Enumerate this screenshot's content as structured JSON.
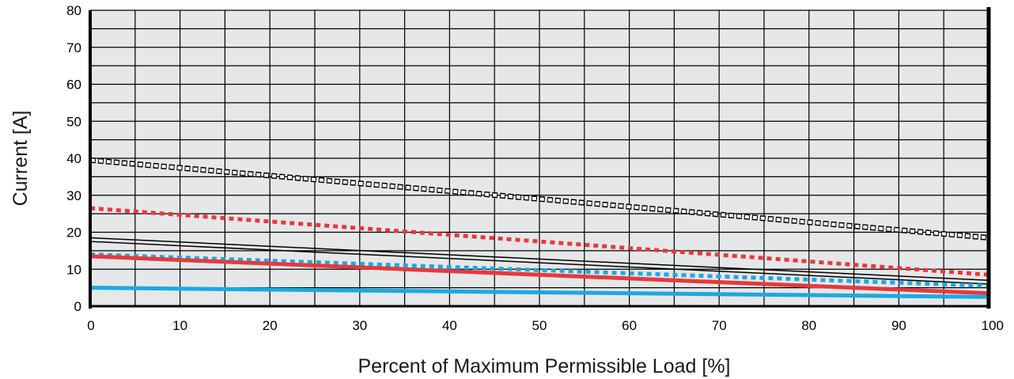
{
  "chart_data": {
    "type": "line",
    "xlabel": "Percent of Maximum Permissible Load [%]",
    "ylabel": "Current [A]",
    "xlim": [
      0,
      100
    ],
    "ylim": [
      0,
      80
    ],
    "x_ticks": [
      0,
      10,
      20,
      30,
      40,
      50,
      60,
      70,
      80,
      90,
      100
    ],
    "x_tick_labels": [
      "0",
      "10",
      "20",
      "30",
      "40",
      "50",
      "60",
      "70",
      "80",
      "90",
      "100"
    ],
    "y_ticks": [
      0,
      10,
      20,
      30,
      40,
      50,
      60,
      70,
      80
    ],
    "y_tick_labels": [
      "0",
      "10",
      "20",
      "30",
      "40",
      "50",
      "60",
      "70",
      "80"
    ],
    "grid": true,
    "background_color": "#e6e7e8",
    "series": [
      {
        "x": [
          0,
          100
        ],
        "y": [
          39.5,
          18.5
        ],
        "color": "#000000",
        "style": "open-square-dotted"
      },
      {
        "x": [
          0,
          100
        ],
        "y": [
          26.5,
          8.5
        ],
        "color": "#e8383d",
        "style": "dotted"
      },
      {
        "x": [
          0,
          100
        ],
        "y": [
          18.5,
          7.0
        ],
        "color": "#000000",
        "style": "thin-solid"
      },
      {
        "x": [
          0,
          100
        ],
        "y": [
          17.5,
          6.0
        ],
        "color": "#000000",
        "style": "thin-solid"
      },
      {
        "x": [
          0,
          100
        ],
        "y": [
          14.0,
          5.5
        ],
        "color": "#1aa9e2",
        "style": "dotted"
      },
      {
        "x": [
          0,
          100
        ],
        "y": [
          13.5,
          3.5
        ],
        "color": "#e8383d",
        "style": "solid"
      },
      {
        "x": [
          0,
          100
        ],
        "y": [
          5.0,
          2.5
        ],
        "color": "#1aa9e2",
        "style": "solid"
      }
    ]
  }
}
